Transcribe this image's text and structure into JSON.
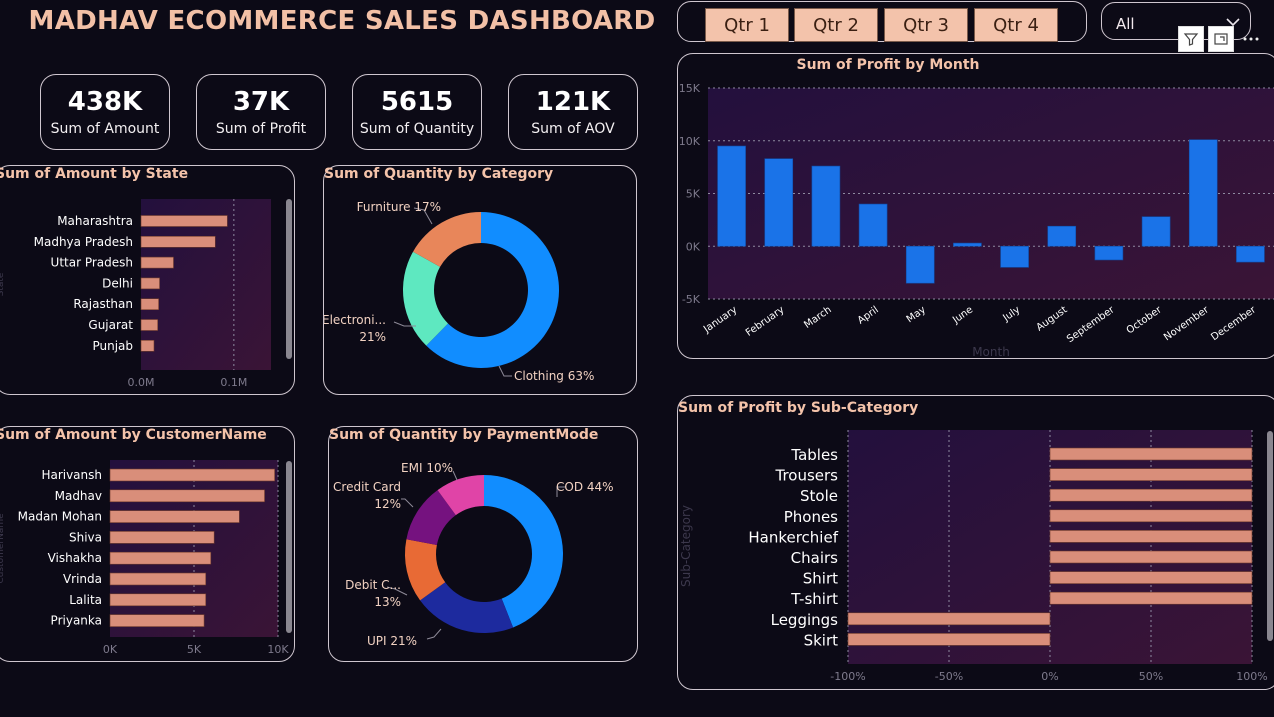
{
  "title": "MADHAV ECOMMERCE SALES DASHBOARD",
  "colors": {
    "bar_salmon": "#d98e7a",
    "bar_blue": "#1a73e8",
    "accent": "#f4c3aa"
  },
  "kpis": [
    {
      "value": "438K",
      "label": "Sum of Amount"
    },
    {
      "value": "37K",
      "label": "Sum of Profit"
    },
    {
      "value": "5615",
      "label": "Sum of Quantity"
    },
    {
      "value": "121K",
      "label": "Sum of AOV"
    }
  ],
  "slicer": {
    "quarters": [
      "Qtr 1",
      "Qtr 2",
      "Qtr 3",
      "Qtr 4"
    ],
    "dropdown_value": "All",
    "icons": [
      "filter-icon",
      "focus-mode-icon",
      "more-options-icon"
    ]
  },
  "chart_data": [
    {
      "id": "state",
      "type": "bar",
      "orientation": "horizontal",
      "title": "Sum of Amount by State",
      "ylabel": "State",
      "categories": [
        "Maharashtra",
        "Madhya Pradesh",
        "Uttar Pradesh",
        "Delhi",
        "Rajasthan",
        "Gujarat",
        "Punjab"
      ],
      "values": [
        0.093,
        0.08,
        0.035,
        0.02,
        0.019,
        0.018,
        0.014
      ],
      "xlim": [
        0,
        0.14
      ],
      "ticks": [
        {
          "v": 0,
          "label": "0.0M"
        },
        {
          "v": 0.1,
          "label": "0.1M"
        }
      ]
    },
    {
      "id": "category",
      "type": "pie",
      "donut": true,
      "title": "Sum of Quantity by Category",
      "slices": [
        {
          "name": "Clothing",
          "pct": 63,
          "label": "Clothing 63%",
          "color": "#118dff"
        },
        {
          "name": "Electronics",
          "pct": 21,
          "label": "Electroni...",
          "label2": "21%",
          "color": "#5ee8c0"
        },
        {
          "name": "Furniture",
          "pct": 17,
          "label": "Furniture 17%",
          "color": "#e8865a"
        }
      ]
    },
    {
      "id": "customer",
      "type": "bar",
      "orientation": "horizontal",
      "title": "Sum of Amount by CustomerName",
      "ylabel": "CustomerName",
      "categories": [
        "Harivansh",
        "Madhav",
        "Madan Mohan",
        "Shiva",
        "Vishakha",
        "Vrinda",
        "Lalita",
        "Priyanka"
      ],
      "values": [
        9800,
        9200,
        7700,
        6200,
        6000,
        5700,
        5700,
        5600
      ],
      "xlim": [
        0,
        10000
      ],
      "ticks": [
        {
          "v": 0,
          "label": "0K"
        },
        {
          "v": 5000,
          "label": "5K"
        },
        {
          "v": 10000,
          "label": "10K"
        }
      ]
    },
    {
      "id": "payment",
      "type": "pie",
      "donut": true,
      "title": "Sum of Quantity by PaymentMode",
      "slices": [
        {
          "name": "COD",
          "pct": 44,
          "label": "COD 44%",
          "color": "#118dff"
        },
        {
          "name": "UPI",
          "pct": 21,
          "label": "UPI 21%",
          "color": "#1d2a9e"
        },
        {
          "name": "Debit Card",
          "pct": 13,
          "label": "Debit C...",
          "label2": "13%",
          "color": "#e86a35"
        },
        {
          "name": "Credit Card",
          "pct": 12,
          "label": "Credit Card",
          "label2": "12%",
          "color": "#75127f"
        },
        {
          "name": "EMI",
          "pct": 10,
          "label": "EMI 10%",
          "color": "#e044a7"
        }
      ]
    },
    {
      "id": "month",
      "type": "bar",
      "title": "Sum of Profit by Month",
      "xlabel": "Month",
      "categories": [
        "January",
        "February",
        "March",
        "April",
        "May",
        "June",
        "July",
        "August",
        "September",
        "October",
        "November",
        "December"
      ],
      "values": [
        9500,
        8300,
        7600,
        4000,
        -3500,
        300,
        -2000,
        1900,
        -1300,
        2800,
        10100,
        -1500
      ],
      "ylim": [
        -5000,
        15000
      ],
      "ticks": [
        {
          "v": 15000,
          "label": "15K"
        },
        {
          "v": 10000,
          "label": "10K"
        },
        {
          "v": 5000,
          "label": "5K"
        },
        {
          "v": 0,
          "label": "0K"
        },
        {
          "v": -5000,
          "label": "-5K"
        }
      ]
    },
    {
      "id": "subcategory",
      "type": "bar",
      "orientation": "horizontal",
      "title": "Sum of Profit by Sub-Category",
      "ylabel": "Sub-Category",
      "categories": [
        "Tables",
        "Trousers",
        "Stole",
        "Phones",
        "Hankerchief",
        "Chairs",
        "Shirt",
        "T-shirt",
        "Leggings",
        "Skirt"
      ],
      "values": [
        100,
        100,
        100,
        100,
        100,
        100,
        100,
        100,
        -100,
        -100
      ],
      "xlim": [
        -100,
        100
      ],
      "ticks": [
        {
          "v": -100,
          "label": "-100%"
        },
        {
          "v": -50,
          "label": "-50%"
        },
        {
          "v": 0,
          "label": "0%"
        },
        {
          "v": 50,
          "label": "50%"
        },
        {
          "v": 100,
          "label": "100%"
        }
      ]
    }
  ]
}
